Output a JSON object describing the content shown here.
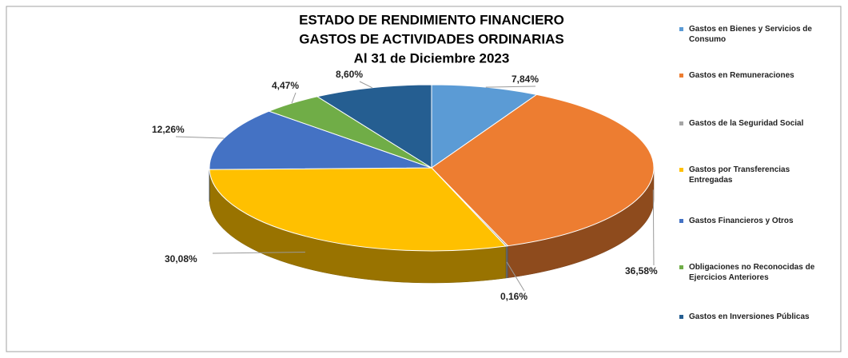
{
  "chart_data": {
    "type": "pie3d",
    "title_lines": [
      "ESTADO DE RENDIMIENTO FINANCIERO",
      "GASTOS DE ACTIVIDADES ORDINARIAS",
      "Al 31 de Diciembre 2023"
    ],
    "categories": [
      "Gastos en Bienes y Servicios de Consumo",
      "Gastos en Remuneraciones",
      "Gastos de la Seguridad Social",
      "Gastos por Transferencias Entregadas",
      "Gastos Financieros y Otros",
      "Obligaciones no Reconocidas de Ejercicios Anteriores",
      "Gastos en Inversiones Públicas"
    ],
    "values": [
      7.84,
      36.58,
      0.16,
      30.08,
      12.26,
      4.47,
      8.6
    ],
    "value_labels": [
      "7,84%",
      "36,58%",
      "0,16%",
      "30,08%",
      "12,26%",
      "4,47%",
      "8,60%"
    ],
    "colors": [
      "#5b9bd5",
      "#ed7d31",
      "#a5a5a5",
      "#ffc000",
      "#4472c4",
      "#70ad47",
      "#255e91"
    ],
    "legend": "right"
  }
}
